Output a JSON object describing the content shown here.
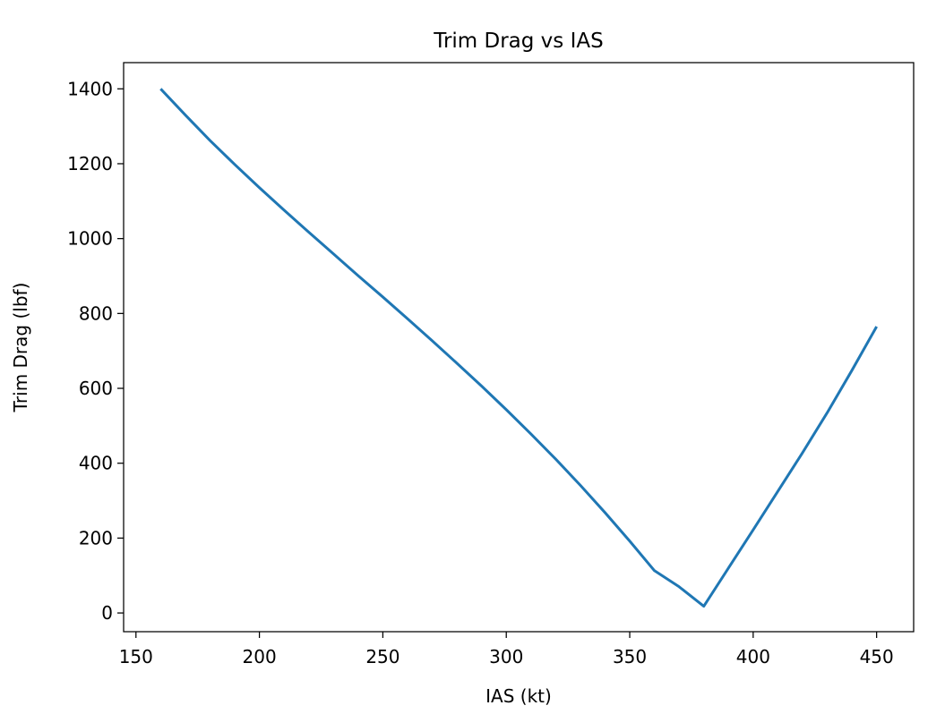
{
  "chart_data": {
    "type": "line",
    "title": "Trim Drag vs IAS",
    "xlabel": "IAS (kt)",
    "ylabel": "Trim Drag (lbf)",
    "xlim": [
      145,
      465
    ],
    "ylim": [
      -50,
      1470
    ],
    "x_ticks": [
      150,
      200,
      250,
      300,
      350,
      400,
      450
    ],
    "y_ticks": [
      0,
      200,
      400,
      600,
      800,
      1000,
      1200,
      1400
    ],
    "grid": false,
    "legend": "none",
    "series": [
      {
        "color": "#1f77b4",
        "x": [
          160,
          170,
          180,
          190,
          200,
          210,
          220,
          230,
          240,
          250,
          260,
          270,
          280,
          290,
          300,
          310,
          320,
          330,
          340,
          350,
          360,
          370,
          380,
          390,
          400,
          410,
          420,
          430,
          440,
          450
        ],
        "y": [
          1400,
          1330,
          1262,
          1198,
          1136,
          1076,
          1017,
          959,
          901,
          844,
          786,
          727,
          667,
          606,
          543,
          478,
          411,
          341,
          268,
          192,
          113,
          70,
          18,
          120,
          222,
          325,
          428,
          535,
          648,
          765
        ]
      }
    ]
  }
}
